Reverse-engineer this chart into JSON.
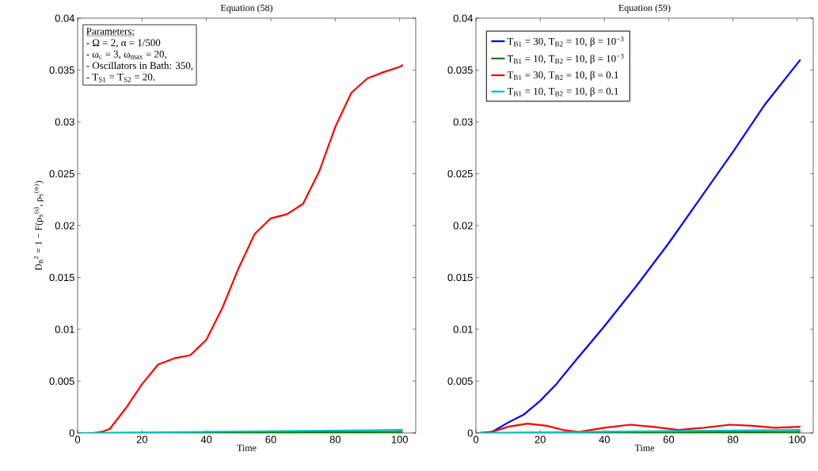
{
  "chart_data": [
    {
      "type": "line",
      "title": "Equation (58)",
      "xlabel": "Time",
      "ylabel": "D$_{B}$$^{2}$ = 1 − F(ρ$_{S}$$^{(s)}$, ρ$_{S}$$^{(m)}$)",
      "annotations": [
        "Parameters:",
        "- Ω = 2, α = 1/500",
        "- ω$_{c}$ = 3, ω$_{max}$ = 20,",
        "- Oscillators in Bath: 350,",
        "- T$_{S1}$ = T$_{S2}$ = 20."
      ],
      "xlim": [
        0,
        105
      ],
      "ylim": [
        0,
        0.04
      ],
      "xticks": [
        0,
        20,
        40,
        60,
        80,
        100
      ],
      "yticks": [
        0,
        0.005,
        0.01,
        0.015,
        0.02,
        0.025,
        0.03,
        0.035,
        0.04
      ],
      "series": [
        {
          "color": "#ff0000",
          "x": [
            1,
            5,
            8,
            10,
            15,
            20,
            25,
            30,
            35,
            40,
            45,
            50,
            55,
            60,
            65,
            70,
            75,
            80,
            85,
            90,
            95,
            100,
            101
          ],
          "values": [
            0,
            0,
            0.00015,
            0.0004,
            0.0024,
            0.0047,
            0.0066,
            0.0072,
            0.0075,
            0.009,
            0.0121,
            0.0159,
            0.0192,
            0.0207,
            0.0211,
            0.0221,
            0.0252,
            0.0295,
            0.0328,
            0.0342,
            0.0348,
            0.0353,
            0.0355
          ]
        },
        {
          "color": "#008000",
          "x": [
            1,
            101
          ],
          "values": [
            0,
            0.0001
          ]
        },
        {
          "color": "#00bfbf",
          "x": [
            1,
            101
          ],
          "values": [
            0,
            0.0003
          ]
        }
      ]
    },
    {
      "type": "line",
      "title": "Equation (59)",
      "xlabel": "Time",
      "legend": "top left",
      "xlim": [
        0,
        105
      ],
      "ylim": [
        0,
        0.04
      ],
      "xticks": [
        0,
        20,
        40,
        60,
        80,
        100
      ],
      "yticks": [
        0,
        0.005,
        0.01,
        0.015,
        0.02,
        0.025,
        0.03,
        0.035,
        0.04
      ],
      "series": [
        {
          "name": "T$_{B1}$ = 30, T$_{B2}$ = 10, β = 10$^{−3}$",
          "color": "#0000ff",
          "x": [
            1,
            5,
            10,
            15,
            20,
            25,
            30,
            40,
            50,
            60,
            70,
            80,
            90,
            101
          ],
          "values": [
            0,
            0.0001,
            0.001,
            0.0018,
            0.0031,
            0.0047,
            0.0066,
            0.0103,
            0.0142,
            0.0183,
            0.0227,
            0.0271,
            0.0317,
            0.036
          ]
        },
        {
          "name": "T$_{B1}$ = 10, T$_{B2}$ = 10, β = 10$^{−3}$",
          "color": "#008000",
          "x": [
            1,
            101
          ],
          "values": [
            0,
            0.0001
          ]
        },
        {
          "name": "T$_{B1}$ = 30, T$_{B2}$ = 10, β = 0.1",
          "color": "#ff0000",
          "x": [
            1,
            5,
            10,
            16,
            22,
            27,
            32,
            40,
            48,
            55,
            63,
            71,
            79,
            86,
            93,
            101
          ],
          "values": [
            0,
            0.0001,
            0.0006,
            0.0009,
            0.0007,
            0.0003,
            0.0001,
            0.0005,
            0.0008,
            0.0006,
            0.0003,
            0.0005,
            0.0008,
            0.0007,
            0.0005,
            0.0006
          ]
        },
        {
          "name": "T$_{B1}$ = 10, T$_{B2}$ = 10, β = 0.1",
          "color": "#00bfbf",
          "x": [
            1,
            101
          ],
          "values": [
            0,
            0.0003
          ]
        }
      ]
    }
  ]
}
